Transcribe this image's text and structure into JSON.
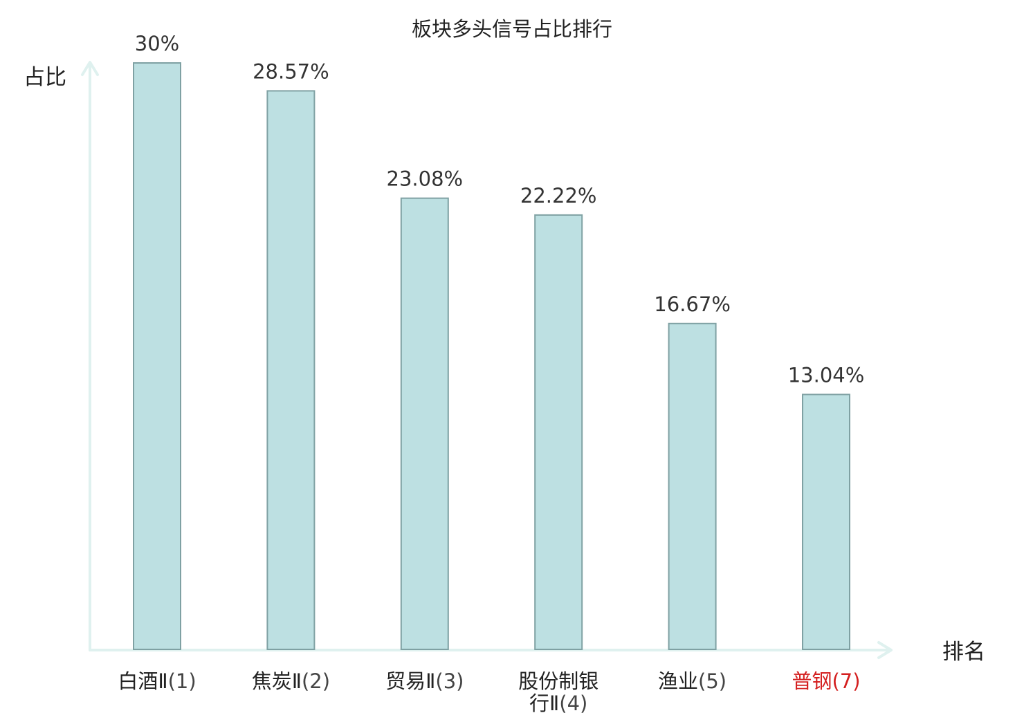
{
  "chart_data": {
    "type": "bar",
    "title": "板块多头信号占比排行",
    "xlabel": "排名",
    "ylabel": "占比",
    "categories": [
      {
        "name_lines": [
          "白酒Ⅱ"
        ],
        "rank": "(1)",
        "highlight": false
      },
      {
        "name_lines": [
          "焦炭Ⅱ"
        ],
        "rank": "(2)",
        "highlight": false
      },
      {
        "name_lines": [
          "贸易Ⅱ"
        ],
        "rank": "(3)",
        "highlight": false
      },
      {
        "name_lines": [
          "股份制银",
          "行Ⅱ"
        ],
        "rank": "(4)",
        "highlight": false
      },
      {
        "name_lines": [
          "渔业"
        ],
        "rank": "(5)",
        "highlight": false
      },
      {
        "name_lines": [
          "普钢"
        ],
        "rank": "(7)",
        "highlight": true
      }
    ],
    "values": [
      30,
      28.57,
      23.08,
      22.22,
      16.67,
      13.04
    ],
    "value_labels": [
      "30%",
      "28.57%",
      "23.08%",
      "22.22%",
      "16.67%",
      "13.04%"
    ],
    "ylim": [
      0,
      30
    ],
    "grid": false,
    "legend": "none"
  },
  "colors": {
    "bar_fill": "#bde0e2",
    "bar_stroke": "#7fa1a3",
    "axis": "#dff1ef",
    "label_text": "#222222",
    "rank_text": "#444444",
    "value_text": "#333333",
    "highlight": "#d42020"
  }
}
